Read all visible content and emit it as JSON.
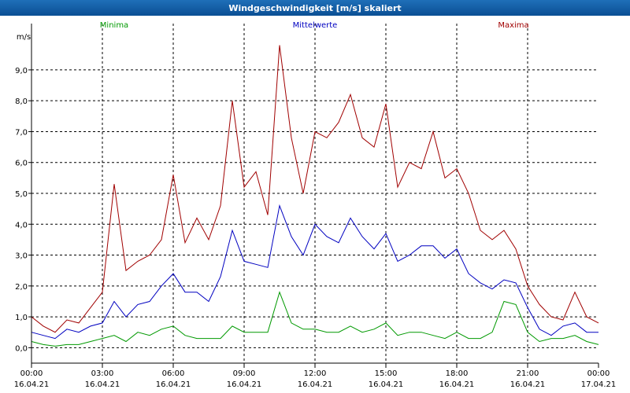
{
  "window_title": "Windgeschwindigkeit [m/s] skaliert",
  "colors": {
    "minima": "#009900",
    "mittelwerte": "#0000c0",
    "maxima": "#a00000",
    "title_bar": "#0a4f94",
    "grid": "#000000"
  },
  "chart_data": {
    "type": "line",
    "title": "Windgeschwindigkeit [m/s] skaliert",
    "ylabel": "m/s",
    "xlabel": "",
    "ylim": [
      -0.5,
      10.5
    ],
    "xlim_hours": [
      0,
      24
    ],
    "grid": true,
    "y_ticks": [
      {
        "value": 0,
        "label": "0,0"
      },
      {
        "value": 1,
        "label": "1,0"
      },
      {
        "value": 2,
        "label": "2,0"
      },
      {
        "value": 3,
        "label": "3,0"
      },
      {
        "value": 4,
        "label": "4,0"
      },
      {
        "value": 5,
        "label": "5,0"
      },
      {
        "value": 6,
        "label": "6,0"
      },
      {
        "value": 7,
        "label": "7,0"
      },
      {
        "value": 8,
        "label": "8,0"
      },
      {
        "value": 9,
        "label": "9,0"
      }
    ],
    "x_ticks": [
      {
        "hour": 0,
        "time": "00:00",
        "date": "16.04.21"
      },
      {
        "hour": 3,
        "time": "03:00",
        "date": "16.04.21"
      },
      {
        "hour": 6,
        "time": "06:00",
        "date": "16.04.21"
      },
      {
        "hour": 9,
        "time": "09:00",
        "date": "16.04.21"
      },
      {
        "hour": 12,
        "time": "12:00",
        "date": "16.04.21"
      },
      {
        "hour": 15,
        "time": "15:00",
        "date": "16.04.21"
      },
      {
        "hour": 18,
        "time": "18:00",
        "date": "16.04.21"
      },
      {
        "hour": 21,
        "time": "21:00",
        "date": "16.04.21"
      },
      {
        "hour": 24,
        "time": "00:00",
        "date": "17.04.21"
      }
    ],
    "legend": [
      {
        "key": "minima",
        "label": "Minima",
        "placement": "left"
      },
      {
        "key": "mittelwerte",
        "label": "Mittelwerte",
        "placement": "center"
      },
      {
        "key": "maxima",
        "label": "Maxima",
        "placement": "right"
      }
    ],
    "x_hours": [
      0,
      0.5,
      1,
      1.5,
      2,
      2.5,
      3,
      3.5,
      4,
      4.5,
      5,
      5.5,
      6,
      6.5,
      7,
      7.5,
      8,
      8.5,
      9,
      9.5,
      10,
      10.5,
      11,
      11.5,
      12,
      12.5,
      13,
      13.5,
      14,
      14.5,
      15,
      15.5,
      16,
      16.5,
      17,
      17.5,
      18,
      18.5,
      19,
      19.5,
      20,
      20.5,
      21,
      21.5,
      22,
      22.5,
      23,
      23.5,
      24
    ],
    "series": [
      {
        "name": "Maxima",
        "key": "maxima",
        "values": [
          1.0,
          0.7,
          0.5,
          0.9,
          0.8,
          1.3,
          1.8,
          5.3,
          2.5,
          2.8,
          3.0,
          3.5,
          5.6,
          3.4,
          4.2,
          3.5,
          4.6,
          8.0,
          5.2,
          5.7,
          4.3,
          9.8,
          6.8,
          5.0,
          7.0,
          6.8,
          7.3,
          8.2,
          6.8,
          6.5,
          7.9,
          5.2,
          6.0,
          5.8,
          7.0,
          5.5,
          5.8,
          5.0,
          3.8,
          3.5,
          3.8,
          3.2,
          2.0,
          1.4,
          1.0,
          0.9,
          1.8,
          1.0,
          0.8
        ]
      },
      {
        "name": "Mittelwerte",
        "key": "mittelwerte",
        "values": [
          0.5,
          0.4,
          0.3,
          0.6,
          0.5,
          0.7,
          0.8,
          1.5,
          1.0,
          1.4,
          1.5,
          2.0,
          2.4,
          1.8,
          1.8,
          1.5,
          2.3,
          3.8,
          2.8,
          2.7,
          2.6,
          4.6,
          3.6,
          3.0,
          4.0,
          3.6,
          3.4,
          4.2,
          3.6,
          3.2,
          3.7,
          2.8,
          3.0,
          3.3,
          3.3,
          2.9,
          3.2,
          2.4,
          2.1,
          1.9,
          2.2,
          2.1,
          1.3,
          0.6,
          0.4,
          0.7,
          0.8,
          0.5,
          0.5
        ]
      },
      {
        "name": "Minima",
        "key": "minima",
        "values": [
          0.2,
          0.1,
          0.05,
          0.1,
          0.1,
          0.2,
          0.3,
          0.4,
          0.2,
          0.5,
          0.4,
          0.6,
          0.7,
          0.4,
          0.3,
          0.3,
          0.3,
          0.7,
          0.5,
          0.5,
          0.5,
          1.8,
          0.8,
          0.6,
          0.6,
          0.5,
          0.5,
          0.7,
          0.5,
          0.6,
          0.8,
          0.4,
          0.5,
          0.5,
          0.4,
          0.3,
          0.5,
          0.3,
          0.3,
          0.5,
          1.5,
          1.4,
          0.5,
          0.2,
          0.3,
          0.3,
          0.4,
          0.2,
          0.1
        ]
      }
    ]
  }
}
